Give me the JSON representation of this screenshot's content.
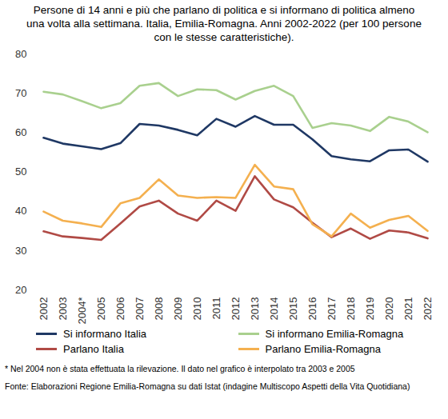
{
  "chart_data": {
    "type": "line",
    "title": "Persone di 14 anni e più che parlano di politica e si informano di politica almeno una volta alla settimana. Italia, Emilia-Romagna. Anni 2002-2022 (per 100 persone con le stesse caratteristiche).",
    "categories": [
      "2002",
      "2003",
      "2004*",
      "2005",
      "2006",
      "2007",
      "2008",
      "2009",
      "2010",
      "2011",
      "2012",
      "2013",
      "2014",
      "2015",
      "2016",
      "2017",
      "2018",
      "2019",
      "2020",
      "2021",
      "2022"
    ],
    "series": [
      {
        "name": "Si informano Italia",
        "color": "#1f3864",
        "values": [
          58.7,
          57.2,
          56.5,
          55.8,
          57.3,
          62.2,
          61.8,
          60.7,
          59.3,
          63.5,
          61.5,
          64.2,
          62.0,
          62.0,
          58.3,
          54.0,
          53.2,
          52.7,
          55.5,
          55.7,
          52.6
        ]
      },
      {
        "name": "Si informano Emilia-Romagna",
        "color": "#a9d08e",
        "values": [
          70.4,
          69.7,
          68.0,
          66.2,
          67.5,
          71.9,
          72.6,
          69.3,
          71.0,
          70.8,
          68.4,
          70.6,
          71.9,
          69.3,
          61.2,
          62.4,
          61.8,
          60.4,
          64.0,
          62.8,
          60.1
        ]
      },
      {
        "name": "Parlano Italia",
        "color": "#b04a45",
        "values": [
          34.9,
          33.6,
          33.2,
          32.7,
          36.9,
          41.2,
          42.7,
          39.4,
          37.6,
          42.7,
          40.1,
          48.9,
          43.0,
          41.0,
          37.1,
          33.4,
          35.6,
          33.0,
          35.1,
          34.6,
          33.1
        ]
      },
      {
        "name": "Parlano Emilia-Romagna",
        "color": "#f4b04f",
        "values": [
          39.9,
          37.6,
          36.9,
          36.0,
          42.0,
          43.4,
          48.1,
          44.0,
          43.4,
          43.6,
          43.4,
          51.8,
          46.3,
          45.6,
          36.7,
          33.6,
          39.4,
          35.8,
          37.8,
          38.8,
          35.0
        ]
      }
    ],
    "ylim": [
      20,
      80
    ],
    "yticks": [
      20,
      30,
      40,
      50,
      60,
      70,
      80
    ],
    "grid": false,
    "legend": "bottom",
    "notes": [
      "* Nel 2004 non è stata effettuata la rilevazione. Il dato nel grafico è interpolato tra 2003 e 2005",
      "Fonte: Elaborazioni Regione Emilia-Romagna su dati Istat (indagine Multiscopo Aspetti della Vita Quotidiana)"
    ]
  }
}
